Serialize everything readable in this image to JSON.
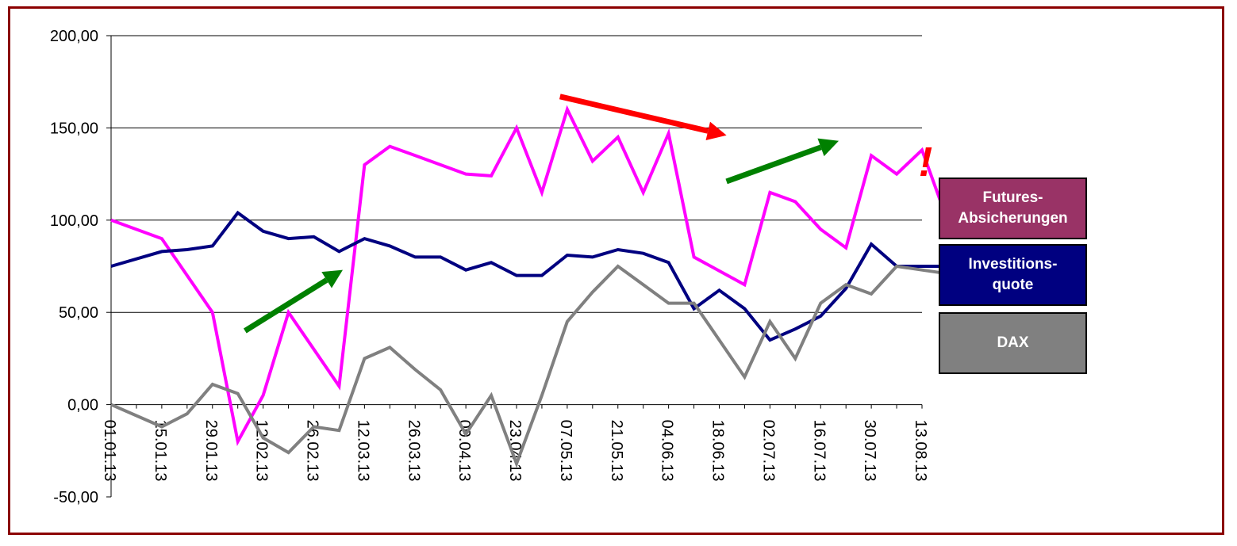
{
  "chart_data": {
    "type": "line",
    "title": "",
    "xlabel": "",
    "ylabel": "",
    "ylim": [
      -50,
      200
    ],
    "yticks": [
      "-50,00",
      "0,00",
      "50,00",
      "100,00",
      "150,00",
      "200,00"
    ],
    "ytick_values": [
      -50,
      0,
      50,
      100,
      150,
      200
    ],
    "grid": true,
    "xtick_labels": [
      "01.01.13",
      "15.01.13",
      "29.01.13",
      "12.02.13",
      "26.02.13",
      "12.03.13",
      "26.03.13",
      "09.04.13",
      "23.04.13",
      "07.05.13",
      "21.05.13",
      "04.06.13",
      "18.06.13",
      "02.07.13",
      "16.07.13",
      "30.07.13",
      "13.08.13"
    ],
    "x_dates": [
      "01.01.13",
      "08.01.13",
      "15.01.13",
      "22.01.13",
      "29.01.13",
      "05.02.13",
      "12.02.13",
      "19.02.13",
      "26.02.13",
      "05.03.13",
      "12.03.13",
      "19.03.13",
      "26.03.13",
      "02.04.13",
      "09.04.13",
      "16.04.13",
      "23.04.13",
      "30.04.13",
      "07.05.13",
      "14.05.13",
      "21.05.13",
      "28.05.13",
      "04.06.13",
      "11.06.13",
      "18.06.13",
      "25.06.13",
      "02.07.13",
      "09.07.13",
      "16.07.13",
      "23.07.13",
      "30.07.13",
      "06.08.13",
      "13.08.13"
    ],
    "series": [
      {
        "name": "Futures-Absicherungen",
        "color": "#ff00ff",
        "points": [
          [
            "01.01.13",
            100
          ],
          [
            "15.01.13",
            90
          ],
          [
            "29.01.13",
            50
          ],
          [
            "05.02.13",
            -20
          ],
          [
            "12.02.13",
            5
          ],
          [
            "19.02.13",
            50
          ],
          [
            "05.03.13",
            10
          ],
          [
            "12.03.13",
            130
          ],
          [
            "19.03.13",
            140
          ],
          [
            "26.03.13",
            135
          ],
          [
            "09.04.13",
            125
          ],
          [
            "16.04.13",
            124
          ],
          [
            "23.04.13",
            150
          ],
          [
            "30.04.13",
            115
          ],
          [
            "07.05.13",
            160
          ],
          [
            "14.05.13",
            132
          ],
          [
            "21.05.13",
            145
          ],
          [
            "28.05.13",
            115
          ],
          [
            "04.06.13",
            147
          ],
          [
            "11.06.13",
            80
          ],
          [
            "25.06.13",
            65
          ],
          [
            "02.07.13",
            115
          ],
          [
            "09.07.13",
            110
          ],
          [
            "16.07.13",
            95
          ],
          [
            "23.07.13",
            85
          ],
          [
            "30.07.13",
            135
          ],
          [
            "06.08.13",
            125
          ],
          [
            "13.08.13",
            138
          ],
          [
            "20.08.13",
            100
          ]
        ]
      },
      {
        "name": "Investitions-quote",
        "color": "#000080",
        "points": [
          [
            "01.01.13",
            75
          ],
          [
            "15.01.13",
            83
          ],
          [
            "22.01.13",
            84
          ],
          [
            "29.01.13",
            86
          ],
          [
            "05.02.13",
            104
          ],
          [
            "12.02.13",
            94
          ],
          [
            "19.02.13",
            90
          ],
          [
            "26.02.13",
            91
          ],
          [
            "05.03.13",
            83
          ],
          [
            "12.03.13",
            90
          ],
          [
            "19.03.13",
            86
          ],
          [
            "26.03.13",
            80
          ],
          [
            "02.04.13",
            80
          ],
          [
            "09.04.13",
            73
          ],
          [
            "16.04.13",
            77
          ],
          [
            "23.04.13",
            70
          ],
          [
            "30.04.13",
            70
          ],
          [
            "07.05.13",
            81
          ],
          [
            "14.05.13",
            80
          ],
          [
            "21.05.13",
            84
          ],
          [
            "28.05.13",
            82
          ],
          [
            "04.06.13",
            77
          ],
          [
            "11.06.13",
            52
          ],
          [
            "18.06.13",
            62
          ],
          [
            "25.06.13",
            52
          ],
          [
            "02.07.13",
            35
          ],
          [
            "09.07.13",
            41
          ],
          [
            "16.07.13",
            48
          ],
          [
            "23.07.13",
            63
          ],
          [
            "30.07.13",
            87
          ],
          [
            "06.08.13",
            75
          ],
          [
            "13.08.13",
            75
          ],
          [
            "20.08.13",
            75
          ]
        ]
      },
      {
        "name": "DAX",
        "color": "#808080",
        "points": [
          [
            "01.01.13",
            0
          ],
          [
            "15.01.13",
            -12
          ],
          [
            "22.01.13",
            -5
          ],
          [
            "29.01.13",
            11
          ],
          [
            "05.02.13",
            6
          ],
          [
            "12.02.13",
            -18
          ],
          [
            "19.02.13",
            -26
          ],
          [
            "26.02.13",
            -12
          ],
          [
            "05.03.13",
            -14
          ],
          [
            "12.03.13",
            25
          ],
          [
            "19.03.13",
            31
          ],
          [
            "26.03.13",
            19
          ],
          [
            "02.04.13",
            8
          ],
          [
            "09.04.13",
            -16
          ],
          [
            "16.04.13",
            5
          ],
          [
            "23.04.13",
            -32
          ],
          [
            "30.04.13",
            5
          ],
          [
            "07.05.13",
            45
          ],
          [
            "14.05.13",
            61
          ],
          [
            "21.05.13",
            75
          ],
          [
            "28.05.13",
            65
          ],
          [
            "04.06.13",
            55
          ],
          [
            "11.06.13",
            55
          ],
          [
            "18.06.13",
            35
          ],
          [
            "25.06.13",
            15
          ],
          [
            "02.07.13",
            45
          ],
          [
            "09.07.13",
            25
          ],
          [
            "16.07.13",
            55
          ],
          [
            "23.07.13",
            65
          ],
          [
            "30.07.13",
            60
          ],
          [
            "06.08.13",
            75
          ],
          [
            "13.08.13",
            73
          ],
          [
            "20.08.13",
            71
          ]
        ]
      }
    ],
    "legend": {
      "placement": "right",
      "items": [
        {
          "label": "Futures-\nAbsicherungen",
          "color": "#993366"
        },
        {
          "label": "Investitions-\nquote",
          "color": "#000080"
        },
        {
          "label": "DAX",
          "color": "#808080"
        }
      ]
    },
    "annotations": {
      "arrows": [
        {
          "color": "#008000",
          "from": [
            "07.02.13",
            40
          ],
          "to": [
            "06.03.13",
            73
          ]
        },
        {
          "color": "#ff0000",
          "from": [
            "05.05.13",
            167
          ],
          "to": [
            "20.06.13",
            146
          ]
        },
        {
          "color": "#008000",
          "from": [
            "20.06.13",
            121
          ],
          "to": [
            "21.07.13",
            143
          ]
        }
      ],
      "exclamation": {
        "text": "!",
        "color": "#ff0000",
        "anchor": [
          "14.08.13",
          124
        ]
      }
    }
  }
}
